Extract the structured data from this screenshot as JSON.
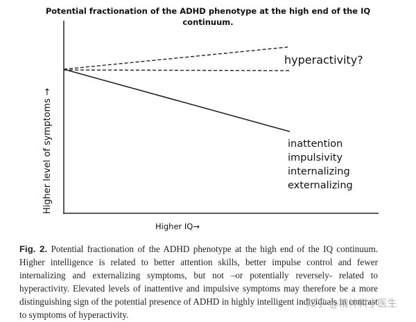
{
  "figure": {
    "title_lines": [
      "Potential fractionation of the ADHD phenotype at the high end of the IQ",
      "continuum."
    ],
    "y_axis_label": "Higher level of symptoms →",
    "x_axis_label": "Higher IQ→",
    "upper_label": "hyperactivity?",
    "lower_labels": [
      "inattention",
      "impulsivity",
      "internalizing",
      "externalizing"
    ]
  },
  "caption": {
    "label": "Fig. 2.",
    "text": "Potential fractionation of the ADHD phenotype at the high end of the IQ continuum. Higher intelligence is related to better attention skills, better impulse control and fewer internalizing and externalizing symptoms, but not –or potentially reversely- related to hyperactivity. Elevated levels of inattentive and impulsive symptoms may therefore be a more distinguishing sign of the potential presence of ADHD in highly intelligent individuals in contrast to symptoms of hyperactivity."
  },
  "watermark": "知乎 @精神科小医生"
}
